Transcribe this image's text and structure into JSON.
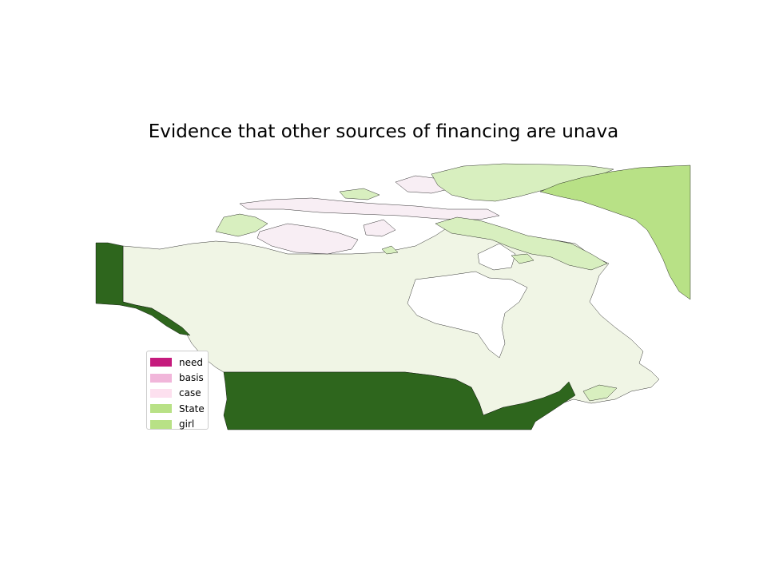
{
  "title": "Evidence that other sources of financing are unava",
  "legend": {
    "items": [
      {
        "label": "need",
        "color": "#c51b7d"
      },
      {
        "label": "basis",
        "color": "#f1b6da"
      },
      {
        "label": "case",
        "color": "#fde0ef"
      },
      {
        "label": "State",
        "color": "#b8e186"
      },
      {
        "label": "girl",
        "color": "#b8e186"
      }
    ]
  },
  "regions": {
    "mainland": {
      "color": "#f0f5e5"
    },
    "alaska": {
      "color": "#2e661d"
    },
    "united_states": {
      "color": "#2e661d"
    },
    "greenland": {
      "color": "#b8e186"
    },
    "arctic_light_green": {
      "color": "#d8efbf"
    },
    "arctic_pink": {
      "color": "#f8eef4"
    },
    "water": {
      "color": "#ffffff"
    }
  }
}
